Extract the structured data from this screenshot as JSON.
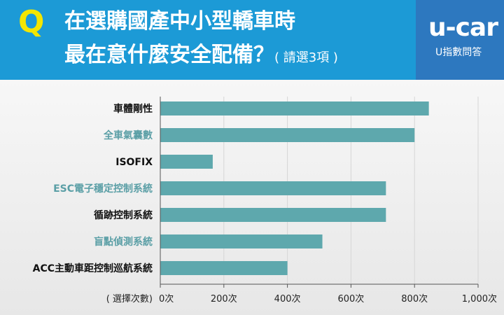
{
  "header": {
    "q_mark": "Q",
    "title_line1": "在選購國產中小型轎車時",
    "title_line2": "最在意什麼安全配備？",
    "title_note": "( 請選3項 )",
    "logo": "u-car",
    "logo_sub": "U指數問答"
  },
  "colors": {
    "bar": "#5ea8ad",
    "label_dark": "#111111",
    "label_accent": "#5b9fa6",
    "header_bg": "#1c9ad6",
    "header_right": "#2d78bf",
    "q_mark": "#f3e600"
  },
  "chart_data": {
    "type": "bar",
    "orientation": "horizontal",
    "categories": [
      "車體剛性",
      "全車氣囊數",
      "ISOFIX",
      "ESC電子穩定控制系統",
      "循跡控制系統",
      "盲點偵測系統",
      "ACC主動車距控制巡航系統"
    ],
    "category_label_colors": [
      "dark",
      "accent",
      "dark",
      "accent",
      "dark",
      "accent",
      "dark"
    ],
    "values": [
      845,
      800,
      165,
      710,
      710,
      510,
      400
    ],
    "xlabel": "( 選擇次數)",
    "xlim": [
      0,
      1000
    ],
    "x_ticks": [
      0,
      200,
      400,
      600,
      800,
      1000
    ],
    "x_tick_labels": [
      "0次",
      "200次",
      "400次",
      "600次",
      "800次",
      "1,000次"
    ],
    "grid": true
  }
}
